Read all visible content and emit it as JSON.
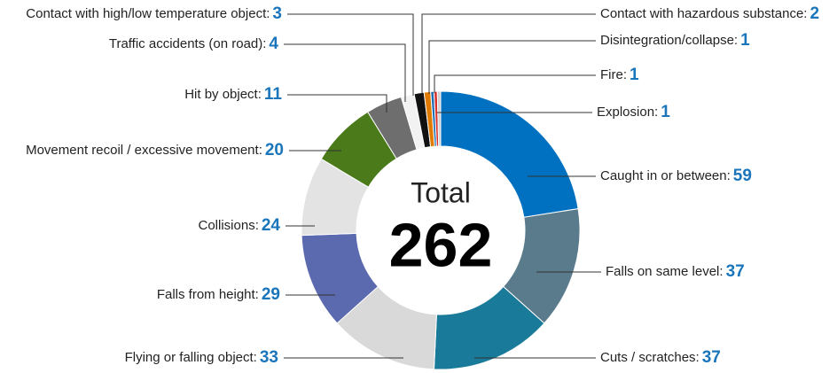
{
  "chart_data": {
    "type": "donut",
    "center_label": "Total",
    "total": 262,
    "categories": [
      "Caught in or between:",
      "Falls on same level:",
      "Cuts / scratches:",
      "Flying or falling object:",
      "Falls from height:",
      "Collisions:",
      "Movement recoil / excessive movement:",
      "Hit by object:",
      "Traffic accidents (on road):",
      "Contact with high/low temperature object:",
      "Contact with hazardous substance:",
      "Disintegration/collapse:",
      "Fire:",
      "Explosion:"
    ],
    "values": [
      59,
      37,
      37,
      33,
      29,
      24,
      20,
      11,
      4,
      3,
      2,
      1,
      1,
      1
    ],
    "colors": [
      "#0070c0",
      "#5a7b8c",
      "#1a7a99",
      "#d9d9d9",
      "#5b6aae",
      "#e3e3e3",
      "#4a7a1a",
      "#6e6e6e",
      "#f2f2f2",
      "#111111",
      "#e07b00",
      "#1f6fb5",
      "#d9302c",
      "#cfcfcf"
    ],
    "value_color": "#1a75bb"
  }
}
